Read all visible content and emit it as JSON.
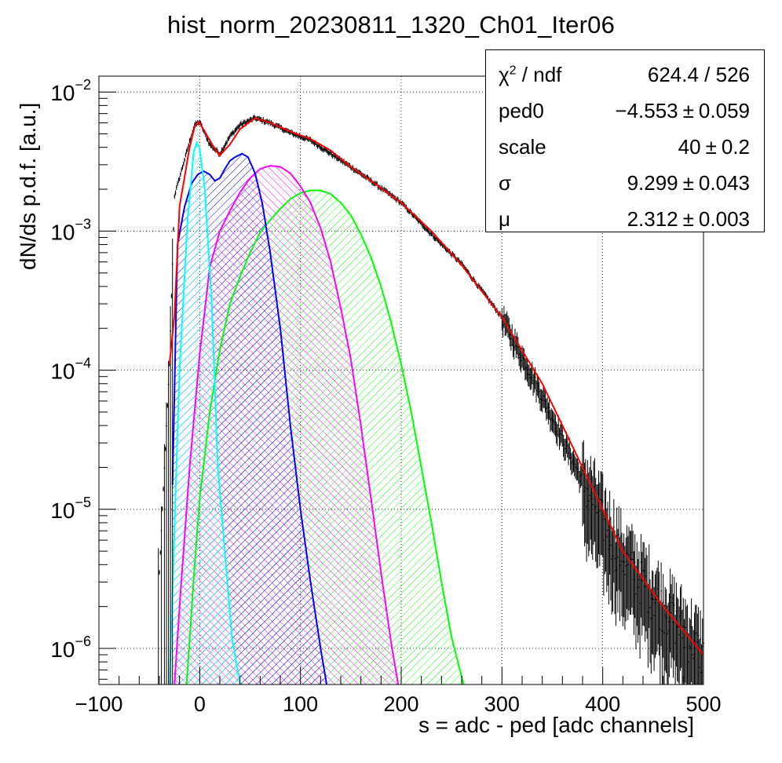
{
  "chart_data": {
    "type": "line",
    "title": "hist_norm_20230811_1320_Ch01_Iter06",
    "xlabel": "s = adc - ped [adc channels]",
    "ylabel": "dN/ds p.d.f. [a.u.]",
    "xlim": [
      -100,
      500
    ],
    "ylim": [
      5.5e-07,
      0.013
    ],
    "yscale": "log",
    "grid": true,
    "x_ticks": [
      -100,
      0,
      100,
      200,
      300,
      400,
      500
    ],
    "x_tick_labels": [
      "−100",
      "0",
      "100",
      "200",
      "300",
      "400",
      "500"
    ],
    "y_ticks": [
      1e-06,
      1e-05,
      0.0001,
      0.001,
      0.01
    ],
    "y_tick_labels": [
      {
        "base": "10",
        "exp": "−6"
      },
      {
        "base": "10",
        "exp": "−5"
      },
      {
        "base": "10",
        "exp": "−4"
      },
      {
        "base": "10",
        "exp": "−3"
      },
      {
        "base": "10",
        "exp": "−2"
      }
    ],
    "legend_position": "top-right",
    "series": [
      {
        "kind": "histogram",
        "color": "#000000",
        "x": [
          -40,
          -30,
          -25,
          -10,
          -5,
          0,
          10,
          20,
          30,
          40,
          55,
          70,
          90,
          110,
          130,
          150,
          170,
          200,
          230,
          260,
          300,
          340,
          380,
          420,
          460,
          500
        ],
        "y": [
          3.5e-06,
          0.00011,
          0.0018,
          0.0044,
          0.0058,
          0.0061,
          0.0042,
          0.0036,
          0.0048,
          0.0058,
          0.0065,
          0.006,
          0.0051,
          0.0045,
          0.0036,
          0.0029,
          0.0023,
          0.0016,
          0.00095,
          0.00058,
          0.00024,
          6.5e-05,
          1.6e-05,
          4.5e-06,
          2e-06,
          9e-07
        ]
      },
      {
        "kind": "fit",
        "color": "#ff0000",
        "x": [
          -30,
          -25,
          -20,
          -10,
          -5,
          -1,
          5,
          15,
          20,
          30,
          40,
          55,
          70,
          90,
          110,
          130,
          150,
          170,
          200,
          230,
          260,
          300,
          340,
          380,
          420,
          460,
          500
        ],
        "y": [
          0.00011,
          0.00025,
          0.0015,
          0.004,
          0.0056,
          0.0061,
          0.0052,
          0.0039,
          0.0035,
          0.0042,
          0.0054,
          0.0065,
          0.006,
          0.0052,
          0.0046,
          0.0038,
          0.0029,
          0.0023,
          0.0016,
          0.001,
          0.00057,
          0.00024,
          8e-05,
          2e-05,
          5e-06,
          2e-06,
          9e-07
        ]
      },
      {
        "kind": "component",
        "color": "#00ffff",
        "hatch": "right",
        "x": [
          -30,
          -20,
          -12,
          -6,
          -3,
          0,
          5,
          12,
          18,
          24,
          32,
          40
        ],
        "y": [
          5.5e-07,
          0.0001,
          0.0012,
          0.0037,
          0.0043,
          0.0039,
          0.002,
          0.0003,
          2e-05,
          6e-06,
          1.2e-06,
          5.5e-07
        ]
      },
      {
        "kind": "component",
        "color": "#0000ff",
        "hatch": "right",
        "x": [
          -27,
          -22,
          -15,
          -8,
          -2,
          4,
          10,
          15,
          20,
          25,
          30,
          35,
          42,
          48,
          55,
          62,
          70,
          80,
          90,
          100,
          110,
          120,
          126
        ],
        "y": [
          1.5e-05,
          0.0008,
          0.0015,
          0.0022,
          0.00255,
          0.0027,
          0.00255,
          0.0023,
          0.0024,
          0.0028,
          0.0032,
          0.0034,
          0.0036,
          0.0034,
          0.0026,
          0.0016,
          0.0007,
          0.0002,
          4e-05,
          1e-05,
          3e-06,
          1e-06,
          5.5e-07
        ]
      },
      {
        "kind": "component",
        "color": "#ff00ff",
        "hatch": "left",
        "x": [
          -25,
          -20,
          -10,
          0,
          10,
          20,
          30,
          40,
          50,
          60,
          70,
          80,
          90,
          100,
          110,
          120,
          130,
          140,
          150,
          160,
          170,
          180,
          190,
          197
        ],
        "y": [
          5.5e-07,
          2e-06,
          2e-05,
          0.00013,
          0.00055,
          0.001,
          0.0014,
          0.0019,
          0.0024,
          0.0028,
          0.00295,
          0.0029,
          0.0026,
          0.0021,
          0.0016,
          0.00105,
          0.0006,
          0.00028,
          0.00012,
          4e-05,
          1.2e-05,
          3.5e-06,
          1.1e-06,
          5.5e-07
        ]
      },
      {
        "kind": "component",
        "color": "#00ff00",
        "hatch": "right",
        "x": [
          -13,
          -5,
          0,
          10,
          20,
          30,
          40,
          50,
          60,
          70,
          80,
          90,
          100,
          110,
          120,
          130,
          140,
          150,
          160,
          170,
          180,
          190,
          200,
          210,
          220,
          230,
          240,
          250,
          262
        ],
        "y": [
          5.5e-07,
          4e-06,
          1.2e-05,
          5e-05,
          0.00014,
          0.0003,
          0.00047,
          0.0007,
          0.00098,
          0.0012,
          0.00145,
          0.0017,
          0.00188,
          0.00196,
          0.00196,
          0.00185,
          0.0016,
          0.0013,
          0.00095,
          0.00065,
          0.0004,
          0.00022,
          0.00011,
          5e-05,
          2e-05,
          8e-06,
          3e-06,
          1.2e-06,
          5.5e-07
        ]
      }
    ]
  },
  "stats": [
    {
      "name": "χ",
      "sup": "2",
      "name_suffix": " / ndf",
      "value": "624.4 / 526",
      "error": ""
    },
    {
      "name": "ped0",
      "value": "−4.553",
      "error": "0.059"
    },
    {
      "name": "scale",
      "value": "40",
      "error": "0.2"
    },
    {
      "name": "σ",
      "value": "9.299",
      "error": "0.043"
    },
    {
      "name": "μ",
      "value": "2.312",
      "error": "0.003"
    }
  ],
  "pm_symbol": "±"
}
